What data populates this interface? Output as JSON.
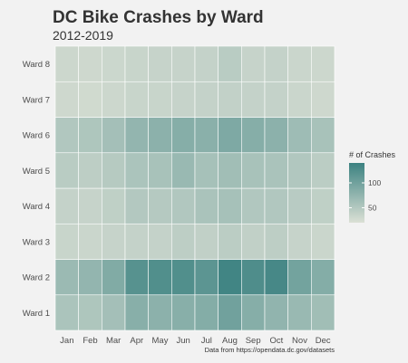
{
  "chart_data": {
    "type": "heatmap",
    "title": "DC Bike Crashes by Ward",
    "subtitle": "2012-2019",
    "caption": "Data from https://opendata.dc.gov/datasets",
    "xlabel": "",
    "ylabel": "",
    "x_categories": [
      "Jan",
      "Feb",
      "Mar",
      "Apr",
      "May",
      "Jun",
      "Jul",
      "Aug",
      "Sep",
      "Oct",
      "Nov",
      "Dec"
    ],
    "y_categories": [
      "Ward 1",
      "Ward 2",
      "Ward 3",
      "Ward 4",
      "Ward 5",
      "Ward 6",
      "Ward 7",
      "Ward 8"
    ],
    "values": [
      [
        45,
        42,
        52,
        78,
        75,
        78,
        82,
        100,
        80,
        70,
        62,
        55
      ],
      [
        60,
        68,
        85,
        125,
        130,
        130,
        120,
        145,
        132,
        140,
        98,
        82
      ],
      [
        18,
        16,
        20,
        22,
        22,
        28,
        25,
        30,
        25,
        28,
        20,
        16
      ],
      [
        22,
        20,
        26,
        38,
        36,
        40,
        46,
        50,
        40,
        40,
        33,
        26
      ],
      [
        32,
        28,
        35,
        45,
        48,
        62,
        50,
        55,
        48,
        46,
        40,
        30
      ],
      [
        40,
        42,
        52,
        68,
        75,
        80,
        76,
        88,
        80,
        75,
        58,
        48
      ],
      [
        12,
        10,
        14,
        18,
        18,
        20,
        22,
        24,
        22,
        22,
        16,
        12
      ],
      [
        14,
        12,
        15,
        18,
        20,
        20,
        22,
        32,
        20,
        22,
        16,
        14
      ]
    ],
    "color_range": [
      0,
      150
    ],
    "color_low": "#dbe0d5",
    "color_high": "#3c8281",
    "legend": {
      "title": "# of Crashes",
      "ticks": [
        50,
        100
      ],
      "position": "right"
    }
  }
}
